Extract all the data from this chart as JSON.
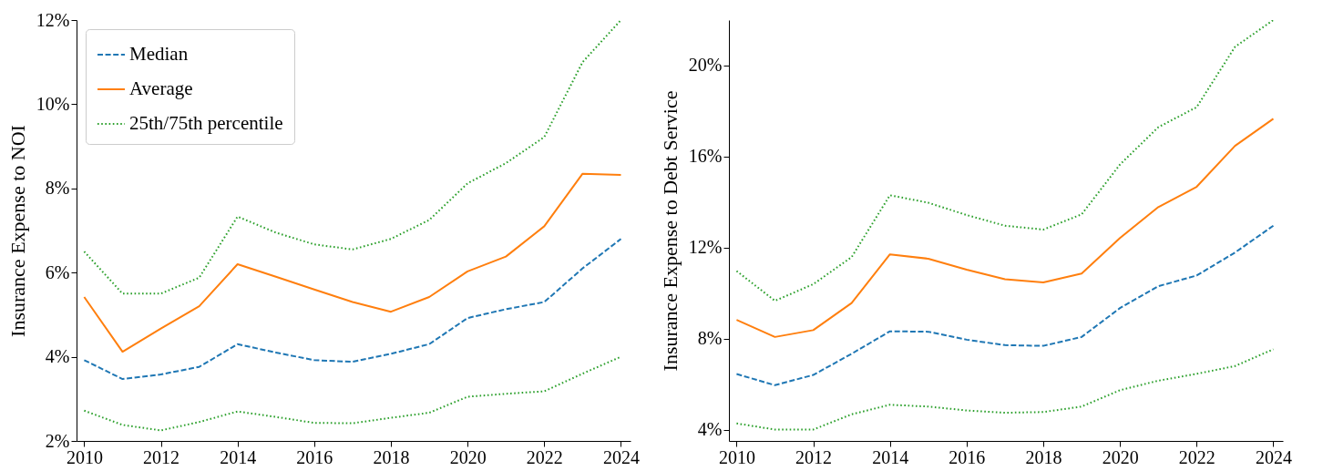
{
  "chart_data": [
    {
      "type": "line",
      "ylabel": "Insurance Expense to NOI",
      "xlim": [
        2009.8,
        2024.25
      ],
      "xticks": [
        2010,
        2012,
        2014,
        2016,
        2018,
        2020,
        2022,
        2024
      ],
      "ylim": [
        2,
        12
      ],
      "yticks": [
        {
          "value": 2,
          "label": "2%"
        },
        {
          "value": 4,
          "label": "4%"
        },
        {
          "value": 6,
          "label": "6%"
        },
        {
          "value": 8,
          "label": "8%"
        },
        {
          "value": 10,
          "label": "10%"
        },
        {
          "value": 12,
          "label": "12%"
        }
      ],
      "grid": false,
      "legend": "top left",
      "x": [
        2010,
        2011,
        2012,
        2013,
        2014,
        2015,
        2016,
        2017,
        2018,
        2019,
        2020,
        2021,
        2022,
        2023,
        2024
      ],
      "series": [
        {
          "name": "Median",
          "color": "#1f77b4",
          "line_style": "dashed",
          "values": [
            3.92,
            3.47,
            3.58,
            3.76,
            4.3,
            4.1,
            3.92,
            3.88,
            4.07,
            4.3,
            4.92,
            5.13,
            5.3,
            6.1,
            6.8
          ]
        },
        {
          "name": "Average",
          "color": "#ff7f0e",
          "line_style": "solid",
          "values": [
            5.42,
            4.12,
            4.67,
            5.2,
            6.2,
            5.9,
            5.6,
            5.3,
            5.07,
            5.42,
            6.03,
            6.38,
            7.1,
            8.35,
            8.32
          ]
        },
        {
          "name": "25th/75th percentile",
          "color": "#2ca02c",
          "line_style": "dotted",
          "values": [
            6.5,
            5.5,
            5.5,
            5.88,
            7.33,
            6.95,
            6.67,
            6.55,
            6.8,
            7.25,
            8.12,
            8.6,
            9.22,
            11.0,
            12.0
          ]
        },
        {
          "color": "#2ca02c",
          "line_style": "dotted",
          "values": [
            2.72,
            2.38,
            2.25,
            2.45,
            2.7,
            2.57,
            2.43,
            2.42,
            2.55,
            2.67,
            3.05,
            3.12,
            3.18,
            3.6,
            4.0
          ]
        }
      ]
    },
    {
      "type": "line",
      "ylabel": "Insurance Expense to Debt Service",
      "xlim": [
        2009.8,
        2024.25
      ],
      "xticks": [
        2010,
        2012,
        2014,
        2016,
        2018,
        2020,
        2022,
        2024
      ],
      "ylim": [
        3.5,
        22
      ],
      "yticks": [
        {
          "value": 4,
          "label": "4%"
        },
        {
          "value": 8,
          "label": "8%"
        },
        {
          "value": 12,
          "label": "12%"
        },
        {
          "value": 16,
          "label": "16%"
        },
        {
          "value": 20,
          "label": "20%"
        }
      ],
      "grid": false,
      "x": [
        2010,
        2011,
        2012,
        2013,
        2014,
        2015,
        2016,
        2017,
        2018,
        2019,
        2020,
        2021,
        2022,
        2023,
        2024
      ],
      "series": [
        {
          "color": "#1f77b4",
          "line_style": "dashed",
          "values": [
            6.44,
            5.95,
            6.4,
            7.33,
            8.32,
            8.3,
            7.95,
            7.71,
            7.68,
            8.07,
            9.34,
            10.3,
            10.77,
            11.78,
            12.96
          ]
        },
        {
          "color": "#ff7f0e",
          "line_style": "solid",
          "values": [
            8.82,
            8.07,
            8.37,
            9.56,
            11.7,
            11.51,
            11.03,
            10.61,
            10.47,
            10.86,
            12.42,
            13.78,
            14.67,
            16.47,
            17.66
          ]
        },
        {
          "color": "#2ca02c",
          "line_style": "dotted",
          "values": [
            10.97,
            9.66,
            10.39,
            11.58,
            14.3,
            13.97,
            13.43,
            12.96,
            12.79,
            13.46,
            15.65,
            17.29,
            18.17,
            20.82,
            22.0
          ]
        },
        {
          "color": "#2ca02c",
          "line_style": "dotted",
          "values": [
            4.27,
            4.0,
            4.0,
            4.67,
            5.09,
            5.01,
            4.84,
            4.74,
            4.77,
            5.01,
            5.73,
            6.15,
            6.45,
            6.79,
            7.53
          ]
        }
      ]
    }
  ]
}
